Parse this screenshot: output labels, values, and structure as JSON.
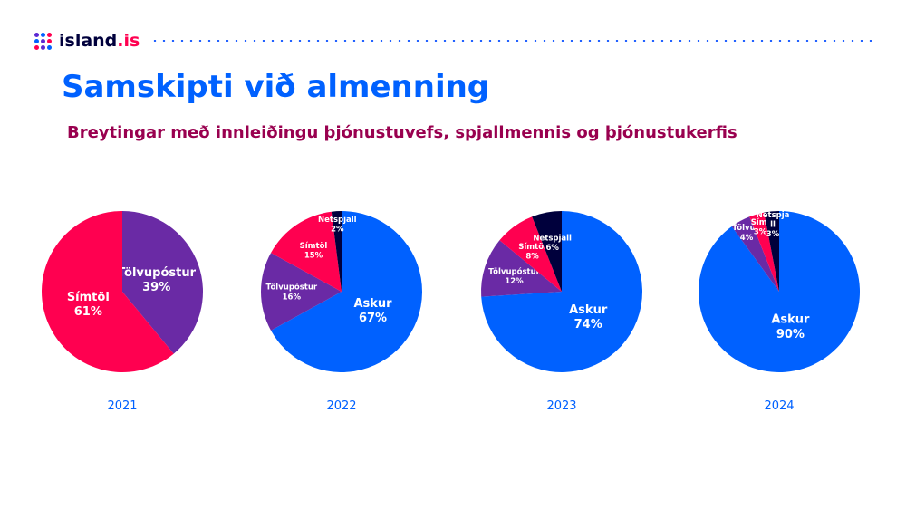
{
  "header": {
    "logo_text": "island",
    "logo_suffix": ".is",
    "logo_dot_colors": [
      "#5c28d2",
      "#0061ff",
      "#ff0050",
      "#0061ff",
      "#5c28d2",
      "#ff0050",
      "#ff0050",
      "#5c28d2",
      "#0061ff"
    ]
  },
  "page": {
    "title": "Samskipti við almenning",
    "subtitle": "Breytingar með innleiðingu þjónustuvefs, spjallmennis og þjónustukerfis"
  },
  "colors": {
    "Askur": "#0061ff",
    "Tölvupóstur": "#6a2aa5",
    "Símtöl": "#ff0050",
    "Netspjall": "#00003c",
    "title": "#0061ff",
    "subtitle": "#99004f"
  },
  "chart_data": [
    {
      "type": "pie",
      "year": "2021",
      "slices": [
        {
          "name": "Tölvupóstur",
          "value": 39,
          "label": "Tölvupóstur",
          "pct": "39%"
        },
        {
          "name": "Símtöl",
          "value": 61,
          "label": "Símtöl",
          "pct": "61%"
        }
      ]
    },
    {
      "type": "pie",
      "year": "2022",
      "slices": [
        {
          "name": "Askur",
          "value": 67,
          "label": "Askur",
          "pct": "67%"
        },
        {
          "name": "Tölvupóstur",
          "value": 16,
          "label": "Tölvupóstur",
          "pct": "16%"
        },
        {
          "name": "Símtöl",
          "value": 15,
          "label": "Símtöl",
          "pct": "15%"
        },
        {
          "name": "Netspjall",
          "value": 2,
          "label": "Netspjall",
          "pct": "2%"
        }
      ]
    },
    {
      "type": "pie",
      "year": "2023",
      "slices": [
        {
          "name": "Askur",
          "value": 74,
          "label": "Askur",
          "pct": "74%"
        },
        {
          "name": "Tölvupóstur",
          "value": 12,
          "label": "Tölvupóstur",
          "pct": "12%"
        },
        {
          "name": "Símtöl",
          "value": 8,
          "label": "Símtöl",
          "pct": "8%"
        },
        {
          "name": "Netspjall",
          "value": 6,
          "label": "Netspjall",
          "pct": "6%"
        }
      ]
    },
    {
      "type": "pie",
      "year": "2024",
      "slices": [
        {
          "name": "Askur",
          "value": 90,
          "label": "Askur",
          "pct": "90%"
        },
        {
          "name": "Tölvupóstur",
          "value": 4,
          "label": "Tölvup",
          "pct": "4%"
        },
        {
          "name": "Símtöl",
          "value": 3,
          "label": "Sími",
          "pct": "3%"
        },
        {
          "name": "Netspjall",
          "value": 3,
          "label": "Netspja ll",
          "pct": "3%"
        }
      ]
    }
  ]
}
